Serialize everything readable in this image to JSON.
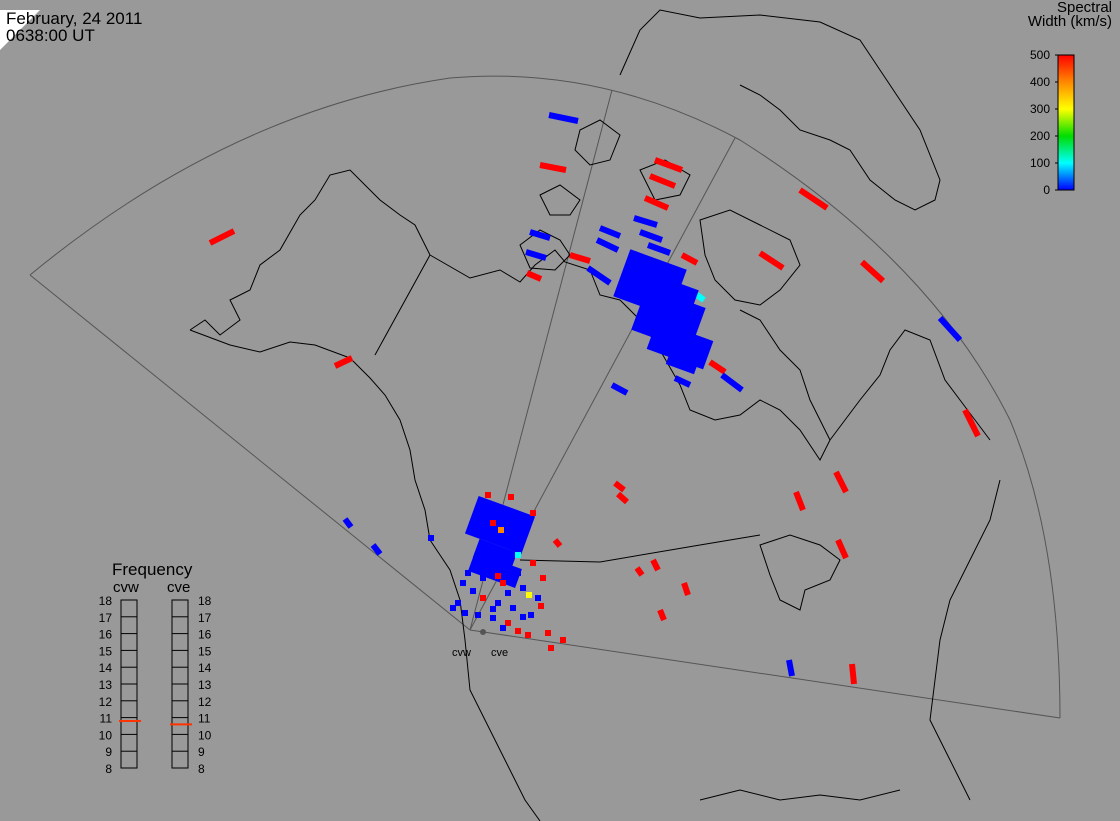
{
  "header": {
    "date": "February, 24 2011",
    "time": "0638:00 UT"
  },
  "color_legend": {
    "title_line1": "Spectral",
    "title_line2": "Width (km/s)",
    "ticks": [
      "500",
      "400",
      "300",
      "200",
      "100",
      "0"
    ],
    "min": 0,
    "max": 500,
    "colors": [
      "#ff0000",
      "#ff8800",
      "#ffff00",
      "#00dd00",
      "#00ffff",
      "#0000ff"
    ]
  },
  "frequency_panel": {
    "title": "Frequency",
    "radars": [
      {
        "name": "cvw",
        "frequency_mhz": 10.8
      },
      {
        "name": "cve",
        "frequency_mhz": 10.6
      }
    ],
    "ticks": [
      "18",
      "17",
      "16",
      "15",
      "14",
      "13",
      "12",
      "11",
      "10",
      "9",
      "8"
    ],
    "range": [
      8,
      18
    ]
  },
  "sites": [
    {
      "name": "cvw"
    },
    {
      "name": "cve"
    }
  ],
  "colors": {
    "background": "#999999",
    "coast": "#000000",
    "fov": "#555555",
    "scatter_low": "#0000ff",
    "scatter_high": "#ff0000",
    "marker": "#ff3300"
  }
}
